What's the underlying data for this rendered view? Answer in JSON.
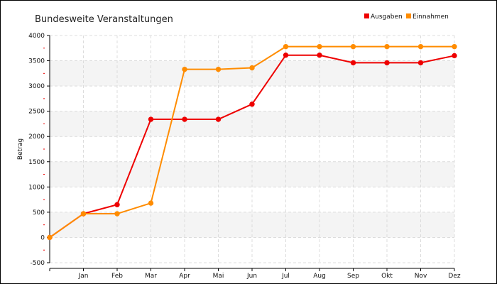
{
  "chart_data": {
    "type": "line",
    "title": "Bundesweite Veranstaltungen",
    "ylabel": "Betrag",
    "xlabel": "",
    "x_tick_labels": [
      "Jan",
      "Feb",
      "Mar",
      "Apr",
      "Mai",
      "Jun",
      "Jul",
      "Aug",
      "Sep",
      "Okt",
      "Nov",
      "Dez"
    ],
    "y_ticks": [
      -500,
      0,
      500,
      1000,
      1500,
      2000,
      2500,
      3000,
      3500,
      4000
    ],
    "ylim": [
      -500,
      4000
    ],
    "x_points": 13,
    "grid": true,
    "legend": "top-right",
    "series": [
      {
        "name": "Ausgaben",
        "color": "#ee0000",
        "values": [
          0,
          470,
          650,
          2340,
          2340,
          2340,
          2640,
          3610,
          3610,
          3460,
          3460,
          3460,
          3600
        ]
      },
      {
        "name": "Einnahmen",
        "color": "#ff8c00",
        "values": [
          0,
          470,
          470,
          680,
          3330,
          3330,
          3360,
          3780,
          3780,
          3780,
          3780,
          3780,
          3780
        ]
      }
    ]
  }
}
